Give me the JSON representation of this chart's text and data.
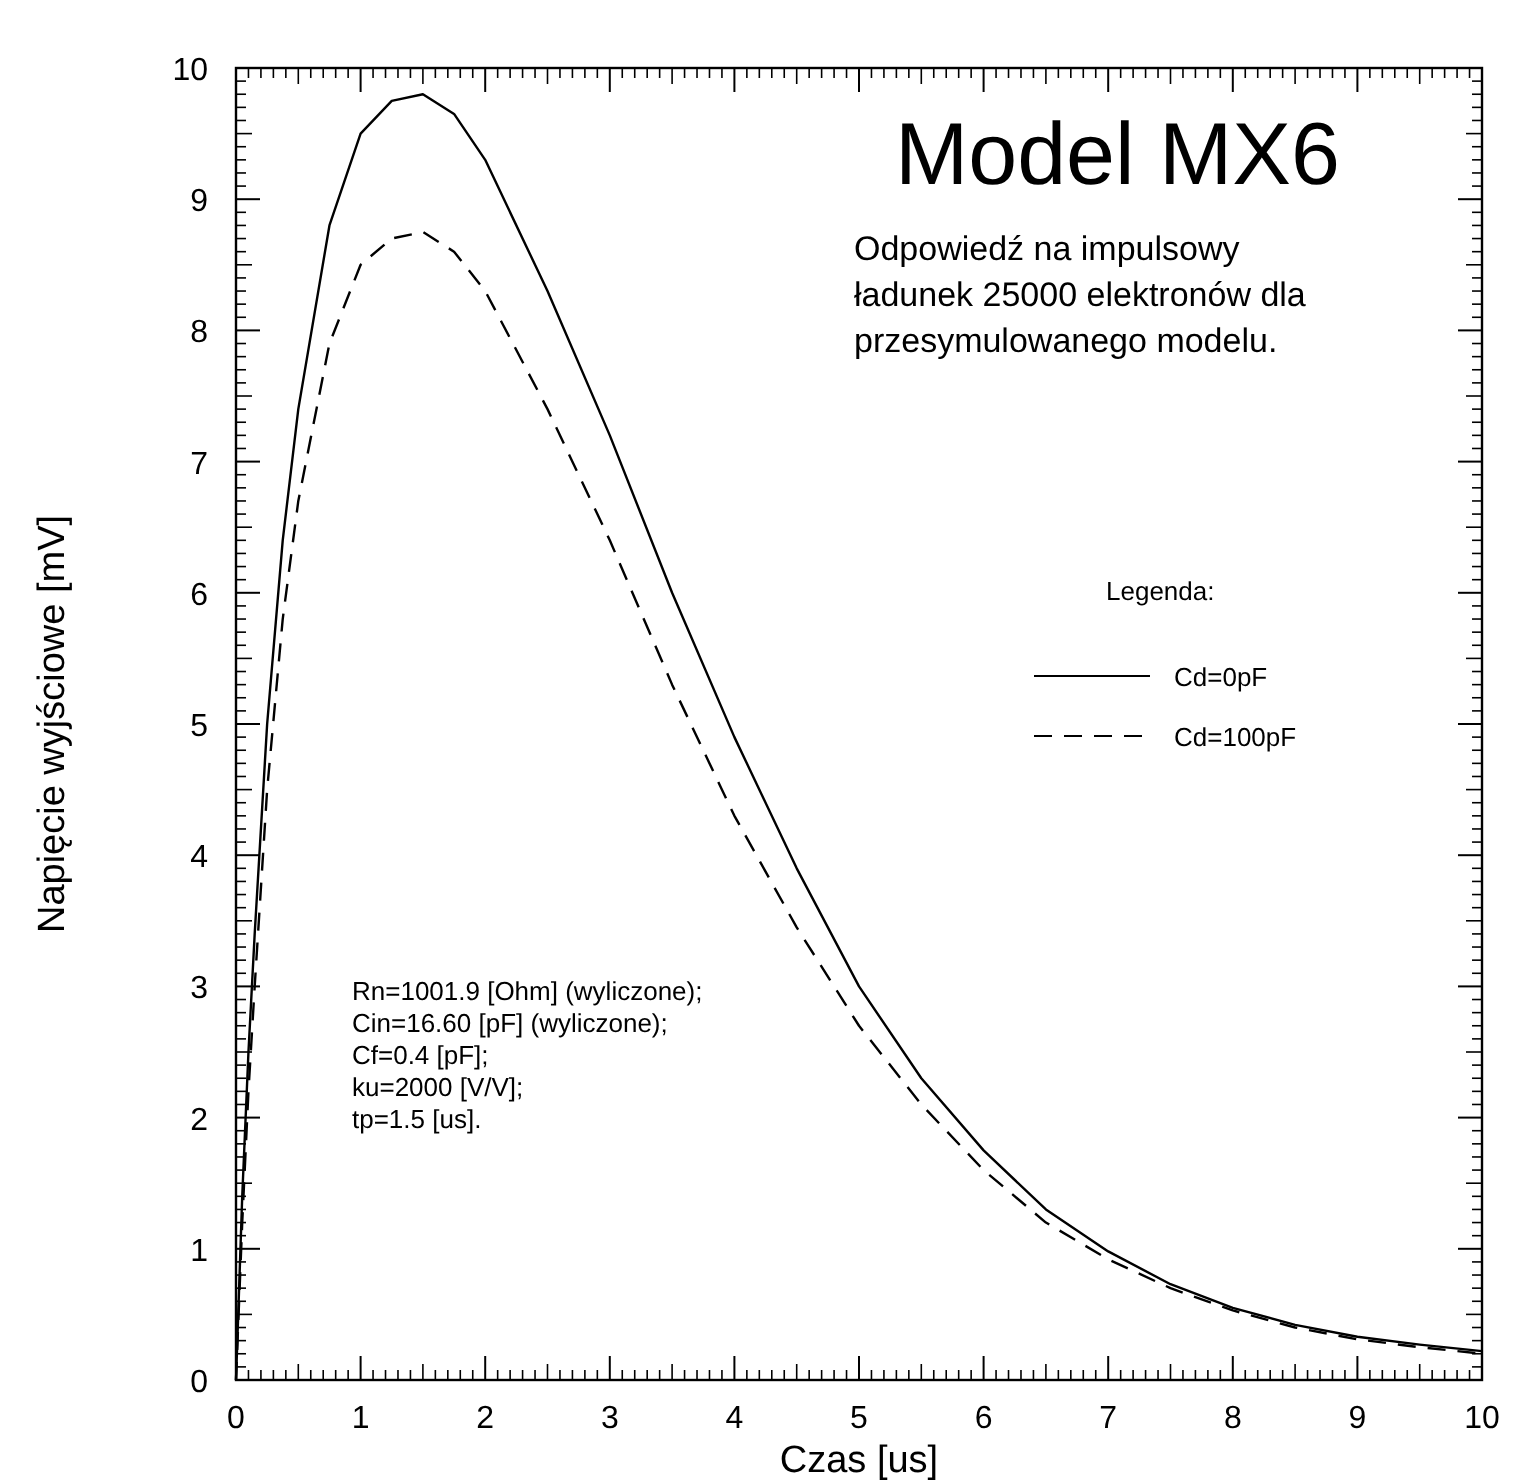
{
  "chart_data": {
    "type": "line",
    "title": "Model MX6",
    "subtitle": "Odpowiedź na impulsowy ładunek 25000 elektronów dla przesymulowanego modelu.",
    "xlabel": "Czas [us]",
    "ylabel": "Napięcie wyjściowe [mV]",
    "legend_title": "Legenda:",
    "legend": "right",
    "grid": false,
    "marker": "none",
    "x": [
      0,
      0.05,
      0.1,
      0.15,
      0.25,
      0.375,
      0.5,
      0.75,
      1,
      1.25,
      1.5,
      1.75,
      2,
      2.5,
      3,
      3.5,
      4,
      4.5,
      5,
      5.5,
      6,
      6.5,
      7,
      7.5,
      8,
      8.5,
      9,
      9.5,
      10
    ],
    "series": [
      {
        "name": "Cd=0pF",
        "color": "#000000",
        "line_style": "solid",
        "values": [
          0,
          1.4,
          2.5,
          3.4,
          5.0,
          6.4,
          7.4,
          8.8,
          9.5,
          9.75,
          9.8,
          9.65,
          9.3,
          8.3,
          7.2,
          6.0,
          4.9,
          3.9,
          3.0,
          2.3,
          1.75,
          1.3,
          0.98,
          0.73,
          0.55,
          0.42,
          0.33,
          0.27,
          0.22
        ]
      },
      {
        "name": "Cd=100pF",
        "color": "#000000",
        "line_style": "dashed",
        "values": [
          0,
          1.2,
          2.2,
          3.0,
          4.5,
          5.8,
          6.7,
          7.9,
          8.5,
          8.7,
          8.75,
          8.6,
          8.3,
          7.4,
          6.4,
          5.3,
          4.3,
          3.45,
          2.7,
          2.1,
          1.6,
          1.2,
          0.92,
          0.7,
          0.53,
          0.4,
          0.31,
          0.25,
          0.2
        ]
      }
    ],
    "xlim": [
      0,
      10
    ],
    "xticks": [
      0,
      1,
      2,
      3,
      4,
      5,
      6,
      7,
      8,
      9,
      10
    ],
    "ylim": [
      0,
      10
    ],
    "yticks": [
      0,
      1,
      2,
      3,
      4,
      5,
      6,
      7,
      8,
      9,
      10
    ],
    "annotations": [
      "Rn=1001.9 [Ohm] (wyliczone);",
      "Cin=16.60 [pF] (wyliczone);",
      "Cf=0.4 [pF];",
      "ku=2000 [V/V];",
      "tp=1.5 [us]."
    ]
  }
}
